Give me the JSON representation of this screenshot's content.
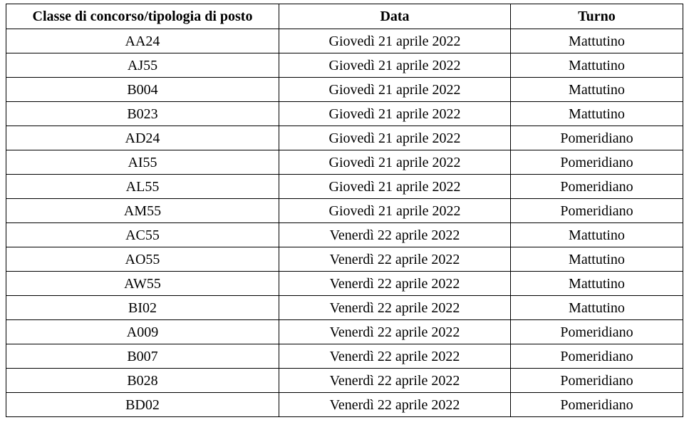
{
  "table": {
    "header": [
      "Classe di concorso/tipologia di posto",
      "Data",
      "Turno"
    ],
    "rows": [
      [
        "AA24",
        "Giovedì 21 aprile 2022",
        "Mattutino"
      ],
      [
        "AJ55",
        "Giovedì 21 aprile 2022",
        "Mattutino"
      ],
      [
        "B004",
        "Giovedì 21 aprile 2022",
        "Mattutino"
      ],
      [
        "B023",
        "Giovedì 21 aprile 2022",
        "Mattutino"
      ],
      [
        "AD24",
        "Giovedì 21 aprile 2022",
        "Pomeridiano"
      ],
      [
        "AI55",
        "Giovedì 21 aprile 2022",
        "Pomeridiano"
      ],
      [
        "AL55",
        "Giovedì 21 aprile 2022",
        "Pomeridiano"
      ],
      [
        "AM55",
        "Giovedì 21 aprile 2022",
        "Pomeridiano"
      ],
      [
        "AC55",
        "Venerdì 22 aprile 2022",
        "Mattutino"
      ],
      [
        "AO55",
        "Venerdì 22 aprile 2022",
        "Mattutino"
      ],
      [
        "AW55",
        "Venerdì 22 aprile 2022",
        "Mattutino"
      ],
      [
        "BI02",
        "Venerdì 22 aprile 2022",
        "Mattutino"
      ],
      [
        "A009",
        "Venerdì 22 aprile 2022",
        "Pomeridiano"
      ],
      [
        "B007",
        "Venerdì 22 aprile 2022",
        "Pomeridiano"
      ],
      [
        "B028",
        "Venerdì 22 aprile 2022",
        "Pomeridiano"
      ],
      [
        "BD02",
        "Venerdì 22 aprile 2022",
        "Pomeridiano"
      ]
    ]
  }
}
